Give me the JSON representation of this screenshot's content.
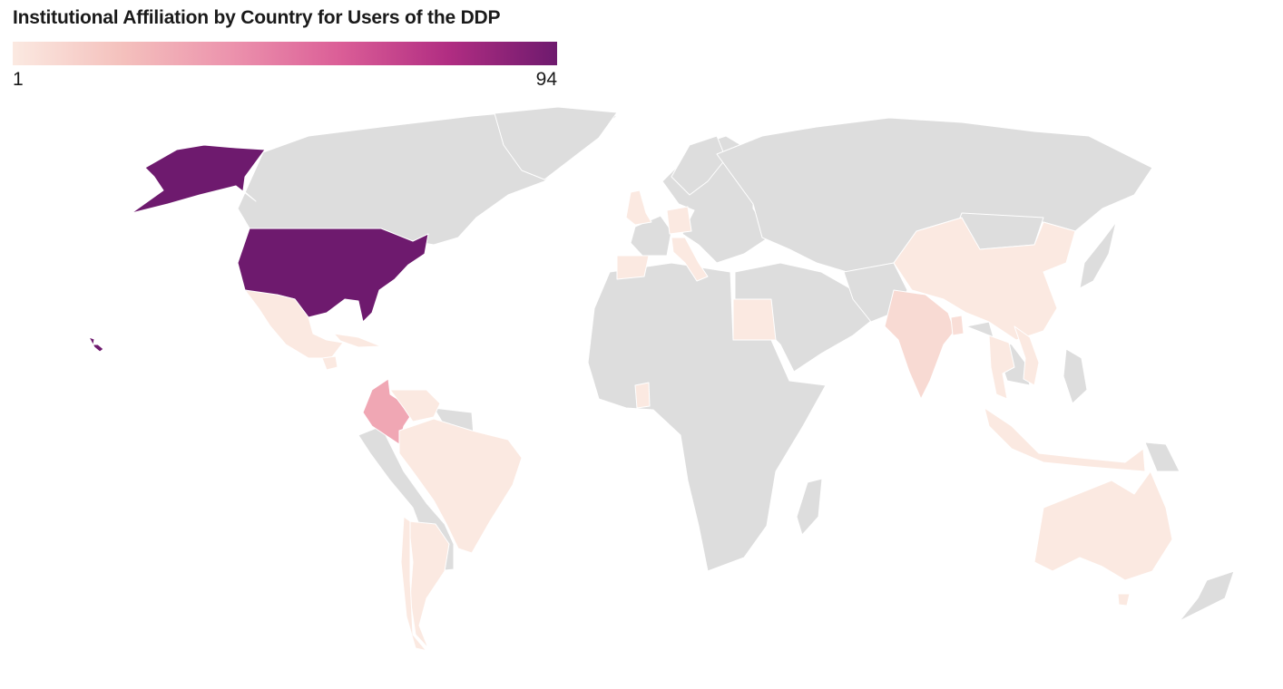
{
  "title": "Institutional Affiliation by Country for Users of the DDP",
  "legend": {
    "min_label": "1",
    "max_label": "94",
    "min_value": 1,
    "max_value": 94,
    "colors": [
      "#fbe9e1",
      "#f4c1bd",
      "#ec93ad",
      "#db5e97",
      "#b12d82",
      "#6e1a6e"
    ]
  },
  "no_data_color": "#dddddd",
  "chart_data": {
    "type": "choropleth",
    "title": "Institutional Affiliation by Country for Users of the DDP",
    "value_range": [
      1,
      94
    ],
    "countries": [
      {
        "name": "United States",
        "value": 94
      },
      {
        "name": "Colombia",
        "value": 30
      },
      {
        "name": "India",
        "value": 8
      },
      {
        "name": "Bangladesh",
        "value": 6
      },
      {
        "name": "Mexico",
        "value": 1
      },
      {
        "name": "Brazil",
        "value": 1
      },
      {
        "name": "Argentina",
        "value": 1
      },
      {
        "name": "Chile",
        "value": 1
      },
      {
        "name": "Venezuela",
        "value": 1
      },
      {
        "name": "Guatemala",
        "value": 1
      },
      {
        "name": "Cuba",
        "value": 1
      },
      {
        "name": "United Kingdom",
        "value": 1
      },
      {
        "name": "Spain",
        "value": 1
      },
      {
        "name": "Germany",
        "value": 1
      },
      {
        "name": "Italy",
        "value": 1
      },
      {
        "name": "Egypt",
        "value": 1
      },
      {
        "name": "Ghana",
        "value": 1
      },
      {
        "name": "China",
        "value": 1
      },
      {
        "name": "Thailand",
        "value": 1
      },
      {
        "name": "Vietnam",
        "value": 1
      },
      {
        "name": "Indonesia",
        "value": 1
      },
      {
        "name": "Australia",
        "value": 1
      }
    ]
  }
}
